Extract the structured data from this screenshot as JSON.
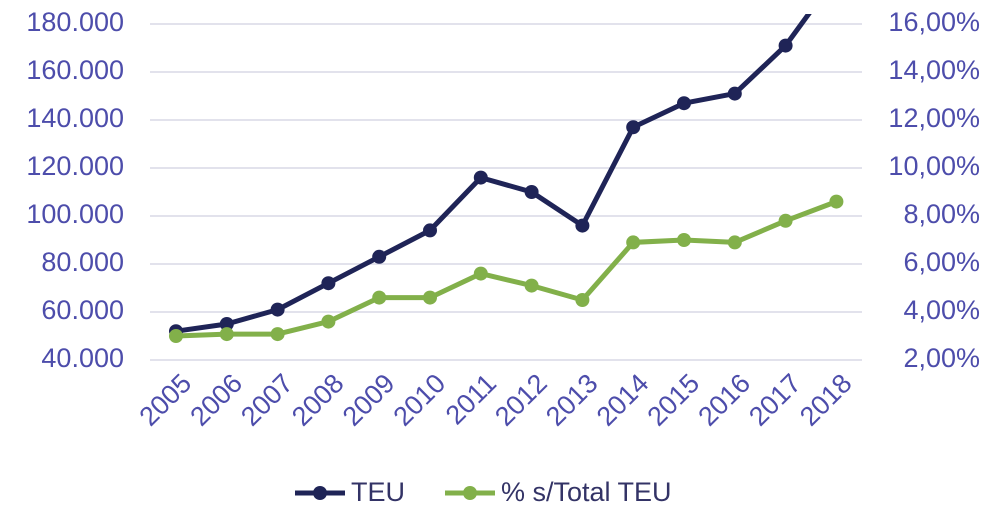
{
  "chart_data": {
    "type": "line",
    "categories": [
      "2005",
      "2006",
      "2007",
      "2008",
      "2009",
      "2010",
      "2011",
      "2012",
      "2013",
      "2014",
      "2015",
      "2016",
      "2017",
      "2018"
    ],
    "series": [
      {
        "name": "TEU",
        "color": "#1f2457",
        "values": [
          52000,
          55000,
          61000,
          72000,
          83000,
          94000,
          116000,
          110000,
          96000,
          137000,
          147000,
          151000,
          171000,
          200000
        ]
      },
      {
        "name": "% s/Total TEU",
        "color": "#82b04a",
        "axis": "y2",
        "values": [
          3.0,
          3.08,
          3.08,
          3.6,
          4.6,
          4.6,
          5.6,
          5.1,
          4.5,
          6.9,
          7.0,
          6.9,
          7.8,
          8.6
        ]
      }
    ],
    "ylim": [
      40000,
      180000
    ],
    "yticks": [
      {
        "value": 40000,
        "label": "40.000"
      },
      {
        "value": 60000,
        "label": "60.000"
      },
      {
        "value": 80000,
        "label": "80.000"
      },
      {
        "value": 100000,
        "label": "100.000"
      },
      {
        "value": 120000,
        "label": "120.000"
      },
      {
        "value": 140000,
        "label": "140.000"
      },
      {
        "value": 160000,
        "label": "160.000"
      },
      {
        "value": 180000,
        "label": "180.000"
      }
    ],
    "y2lim": [
      2,
      16
    ],
    "y2ticks": [
      {
        "value": 2,
        "label": "2,00%"
      },
      {
        "value": 4,
        "label": "4,00%"
      },
      {
        "value": 6,
        "label": "6,00%"
      },
      {
        "value": 8,
        "label": "8,00%"
      },
      {
        "value": 10,
        "label": "10,00%"
      },
      {
        "value": 12,
        "label": "12,00%"
      },
      {
        "value": 14,
        "label": "14,00%"
      },
      {
        "value": 16,
        "label": "16,00%"
      }
    ],
    "grid": true
  }
}
